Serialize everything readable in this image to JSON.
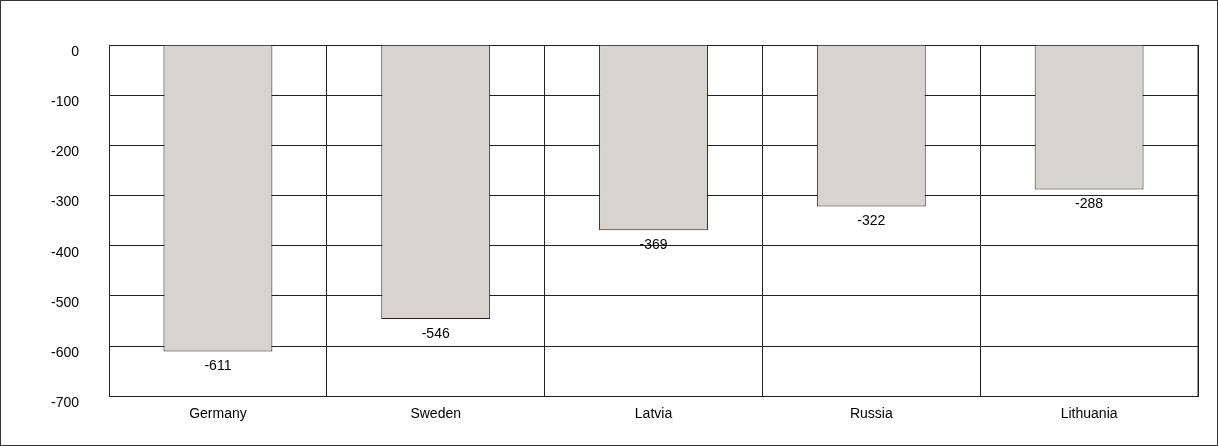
{
  "chart_data": {
    "type": "bar",
    "categories": [
      "Germany",
      "Sweden",
      "Latvia",
      "Russia",
      "Lithuania"
    ],
    "values": [
      -611,
      -546,
      -369,
      -322,
      -288
    ],
    "color": "#d7d3cf",
    "ylim": [
      -700,
      0
    ],
    "yticks": [
      -700,
      -600,
      -500,
      -400,
      -300,
      -200,
      -100,
      0
    ],
    "grid": true,
    "data_labels": true,
    "legend": false
  }
}
